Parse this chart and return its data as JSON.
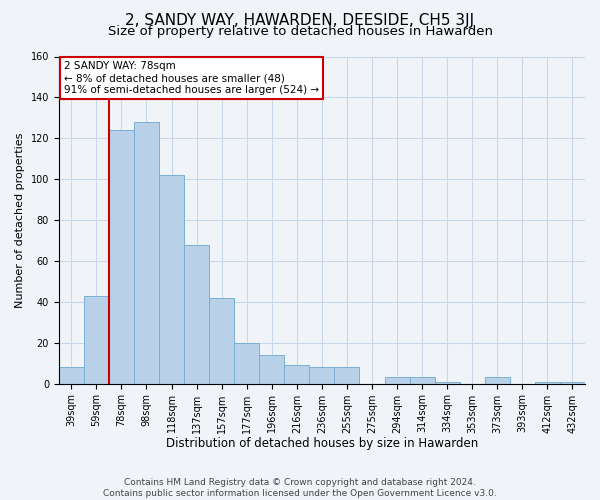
{
  "title": "2, SANDY WAY, HAWARDEN, DEESIDE, CH5 3JJ",
  "subtitle": "Size of property relative to detached houses in Hawarden",
  "xlabel": "Distribution of detached houses by size in Hawarden",
  "ylabel": "Number of detached properties",
  "categories": [
    "39sqm",
    "59sqm",
    "78sqm",
    "98sqm",
    "118sqm",
    "137sqm",
    "157sqm",
    "177sqm",
    "196sqm",
    "216sqm",
    "236sqm",
    "255sqm",
    "275sqm",
    "294sqm",
    "314sqm",
    "334sqm",
    "353sqm",
    "373sqm",
    "393sqm",
    "412sqm",
    "432sqm"
  ],
  "values": [
    8,
    43,
    124,
    128,
    102,
    68,
    42,
    20,
    14,
    9,
    8,
    8,
    0,
    3,
    3,
    1,
    0,
    3,
    0,
    1,
    1
  ],
  "bar_color": "#b8d0e8",
  "bar_edge_color": "#7aafd4",
  "red_line_index": 2,
  "annotation_title": "2 SANDY WAY: 78sqm",
  "annotation_line1": "← 8% of detached houses are smaller (48)",
  "annotation_line2": "91% of semi-detached houses are larger (524) →",
  "annotation_box_color": "#ffffff",
  "annotation_box_edge_color": "#cc0000",
  "red_line_color": "#cc0000",
  "ylim": [
    0,
    160
  ],
  "yticks": [
    0,
    20,
    40,
    60,
    80,
    100,
    120,
    140,
    160
  ],
  "grid_color": "#c8d8e8",
  "background_color": "#f0f4f8",
  "footer_line1": "Contains HM Land Registry data © Crown copyright and database right 2024.",
  "footer_line2": "Contains public sector information licensed under the Open Government Licence v3.0.",
  "title_fontsize": 11,
  "subtitle_fontsize": 9.5,
  "xlabel_fontsize": 8.5,
  "ylabel_fontsize": 8,
  "tick_fontsize": 7,
  "footer_fontsize": 6.5,
  "annotation_fontsize": 7.5
}
